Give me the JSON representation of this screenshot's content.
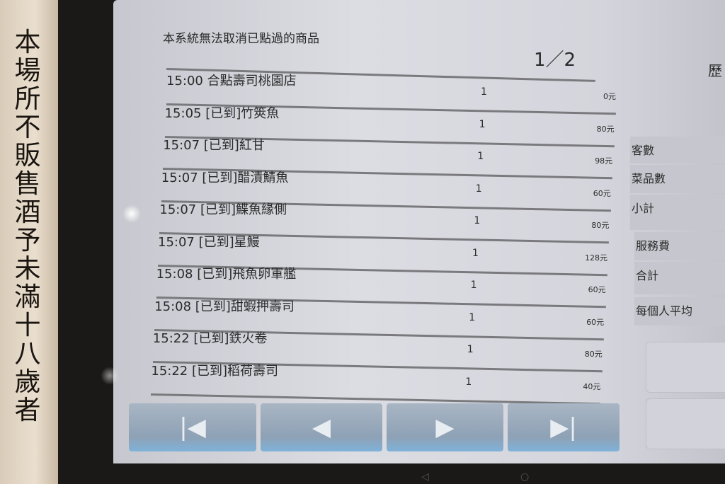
{
  "sign": {
    "text": "本場所不販售酒予未滿十八歲者"
  },
  "header": {
    "notice": "本系統無法取消已點過的商品",
    "page": "1／2",
    "history_label": "歷"
  },
  "orders": [
    {
      "name": "15:00 合點壽司桃園店",
      "qty": "1",
      "price": "0元"
    },
    {
      "name": "15:05 [已到]竹筴魚",
      "qty": "1",
      "price": "80元"
    },
    {
      "name": "15:07 [已到]紅甘",
      "qty": "1",
      "price": "98元"
    },
    {
      "name": "15:07 [已到]醋漬鯖魚",
      "qty": "1",
      "price": "60元"
    },
    {
      "name": "15:07 [已到]鰈魚緣側",
      "qty": "1",
      "price": "80元"
    },
    {
      "name": "15:07 [已到]星鰻",
      "qty": "1",
      "price": "128元"
    },
    {
      "name": "15:08 [已到]飛魚卵軍艦",
      "qty": "1",
      "price": "60元"
    },
    {
      "name": "15:08 [已到]甜蝦押壽司",
      "qty": "1",
      "price": "60元"
    },
    {
      "name": "15:22 [已到]鉄火卷",
      "qty": "1",
      "price": "80元"
    },
    {
      "name": "15:22 [已到]稻荷壽司",
      "qty": "1",
      "price": "40元"
    }
  ],
  "pagination": {
    "first": "|◀",
    "prev": "◀",
    "next": "▶",
    "last": "▶|"
  },
  "summary": [
    {
      "label": "客數"
    },
    {
      "label": "菜品數"
    },
    {
      "label": "小計"
    },
    {
      "label": "服務費"
    },
    {
      "label": "合計"
    },
    {
      "label": "每個人平均"
    }
  ],
  "system_nav": {
    "back": "◁",
    "home": "○"
  }
}
